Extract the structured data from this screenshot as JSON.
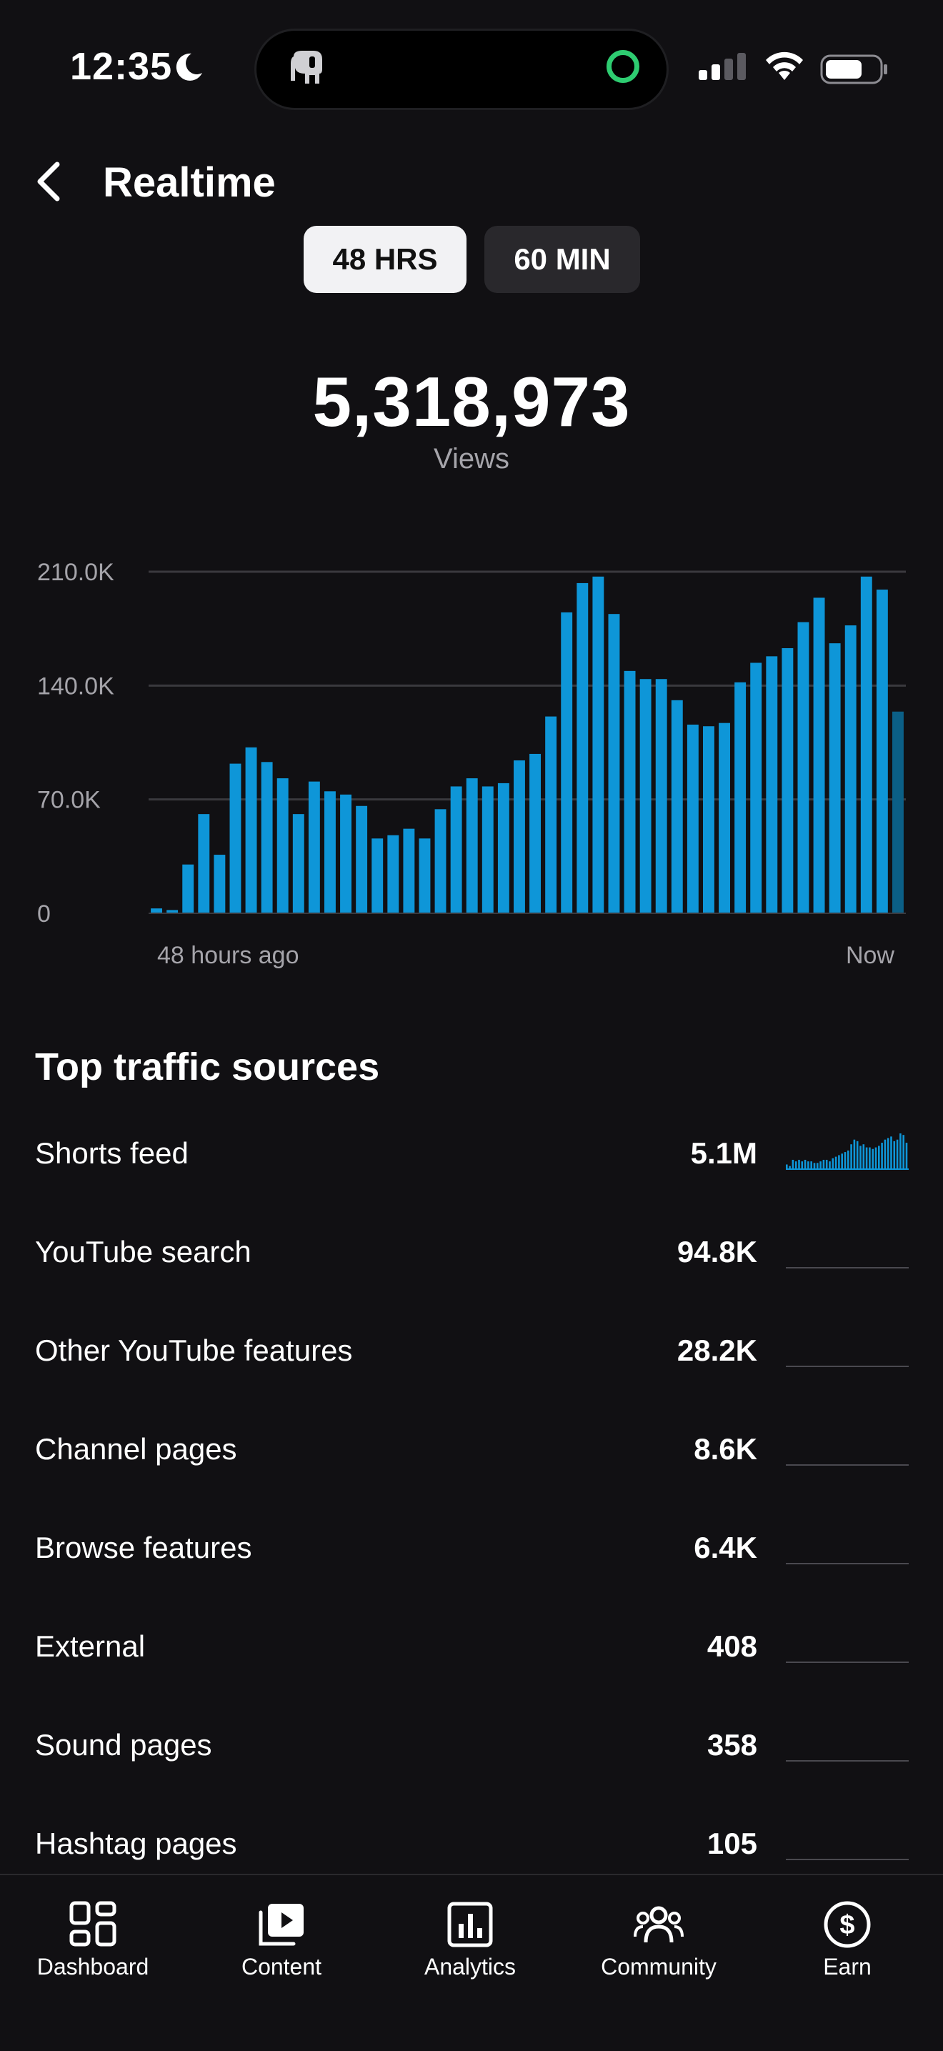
{
  "status_bar": {
    "time": "12:35"
  },
  "header": {
    "title": "Realtime"
  },
  "range_tabs": [
    {
      "label": "48 HRS",
      "selected": true
    },
    {
      "label": "60 MIN",
      "selected": false
    }
  ],
  "summary": {
    "views": "5,318,973",
    "views_label": "Views"
  },
  "chart_data": {
    "type": "bar",
    "ylabel": "",
    "xlabel": "",
    "ylim": [
      0,
      210000
    ],
    "y_ticks": [
      "210.0K",
      "140.0K",
      "70.0K",
      "0"
    ],
    "x_tick_labels": [
      "48 hours ago",
      "Now"
    ],
    "grid": true,
    "accent": "#0e96d8",
    "last_bar_color": "#0b5f86",
    "values": [
      3000,
      2000,
      30000,
      61000,
      36000,
      92000,
      102000,
      93000,
      83000,
      61000,
      81000,
      75000,
      73000,
      66000,
      46000,
      48000,
      52000,
      46000,
      64000,
      78000,
      83000,
      78000,
      80000,
      94000,
      98000,
      121000,
      185000,
      203000,
      207000,
      184000,
      149000,
      144000,
      144000,
      131000,
      116000,
      115000,
      117000,
      142000,
      154000,
      158000,
      163000,
      179000,
      194000,
      166000,
      177000,
      207000,
      199000,
      124000
    ]
  },
  "traffic": {
    "title": "Top traffic sources",
    "rows": [
      {
        "name": "Shorts feed",
        "value": "5.1M"
      },
      {
        "name": "YouTube search",
        "value": "94.8K"
      },
      {
        "name": "Other YouTube features",
        "value": "28.2K"
      },
      {
        "name": "Channel pages",
        "value": "8.6K"
      },
      {
        "name": "Browse features",
        "value": "6.4K"
      },
      {
        "name": "External",
        "value": "408"
      },
      {
        "name": "Sound pages",
        "value": "358"
      },
      {
        "name": "Hashtag pages",
        "value": "105"
      }
    ],
    "shorts_spark": [
      3,
      2,
      6,
      5,
      6,
      5,
      6,
      5,
      5,
      4,
      4,
      5,
      6,
      6,
      5,
      7,
      8,
      9,
      10,
      11,
      12,
      16,
      19,
      18,
      15,
      16,
      14,
      14,
      13,
      14,
      15,
      17,
      19,
      20,
      21,
      18,
      19,
      23,
      22,
      17
    ]
  },
  "nav": [
    {
      "label": "Dashboard",
      "icon": "dashboard-icon"
    },
    {
      "label": "Content",
      "icon": "content-icon"
    },
    {
      "label": "Analytics",
      "icon": "analytics-icon"
    },
    {
      "label": "Community",
      "icon": "community-icon"
    },
    {
      "label": "Earn",
      "icon": "dollar-icon"
    }
  ]
}
